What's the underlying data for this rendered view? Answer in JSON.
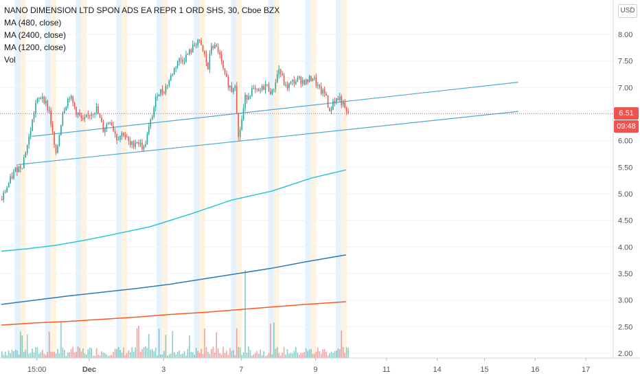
{
  "header": {
    "symbol_title": "NANO DIMENSION LTD SPON ADS EA REPR 1 ORD SHS, 30, Cboe BZX",
    "indicators": [
      "MA (480, close)",
      "MA (2400, close)",
      "MA (1200, close)",
      "Vol"
    ]
  },
  "price_scale": {
    "currency": "USD",
    "last_price": "6.51",
    "countdown": "09:48"
  },
  "colors": {
    "up": "#26a69a",
    "down": "#ef5350",
    "ma480": "#26c6da",
    "ma2400": "#ff5722",
    "ma1200": "#2979b8",
    "trendline": "#4fa8d6",
    "session_blue": "#e3f2fd",
    "session_orange": "#fff3e0",
    "last_price_line": "#ef5350"
  },
  "chart_data": {
    "type": "candlestick",
    "title": "NANO DIMENSION LTD SPON ADS EA REPR 1 ORD SHS, 30, Cboe BZX",
    "interval": "30",
    "y_ticks": [
      2.0,
      2.5,
      3.0,
      3.5,
      4.0,
      4.5,
      5.0,
      5.5,
      6.0,
      6.5,
      7.0,
      7.5,
      8.0
    ],
    "y_tick_labels": [
      "2.00",
      "2.50",
      "3.00",
      "3.50",
      "4.00",
      "4.50",
      "5.00",
      "5.50",
      "6.00",
      "6.50",
      "7.00",
      "7.50",
      "8.00"
    ],
    "ylim": [
      1.95,
      8.4
    ],
    "x_tick_labels": [
      "15:00",
      "Dec",
      "3",
      "7",
      "9",
      "11",
      "14",
      "15",
      "16",
      "17"
    ],
    "x_ticks_slot": [
      10.5,
      26,
      48,
      71,
      93,
      114,
      129,
      143,
      158,
      173
    ],
    "price_slots": 103,
    "close_path": [
      [
        0,
        4.9
      ],
      [
        2,
        5.2
      ],
      [
        4,
        5.45
      ],
      [
        6,
        5.55
      ],
      [
        8,
        6.05
      ],
      [
        10,
        6.7
      ],
      [
        12,
        6.85
      ],
      [
        14,
        6.55
      ],
      [
        16,
        5.7
      ],
      [
        18,
        6.55
      ],
      [
        20,
        6.85
      ],
      [
        22,
        6.55
      ],
      [
        24,
        6.35
      ],
      [
        26,
        6.5
      ],
      [
        28,
        6.6
      ],
      [
        30,
        6.2
      ],
      [
        32,
        6.4
      ],
      [
        34,
        6.05
      ],
      [
        36,
        6.15
      ],
      [
        38,
        5.9
      ],
      [
        40,
        6.0
      ],
      [
        42,
        5.85
      ],
      [
        44,
        6.35
      ],
      [
        46,
        6.9
      ],
      [
        48,
        6.95
      ],
      [
        50,
        7.2
      ],
      [
        52,
        7.5
      ],
      [
        54,
        7.55
      ],
      [
        56,
        7.7
      ],
      [
        58,
        7.9
      ],
      [
        60,
        7.6
      ],
      [
        61,
        7.35
      ],
      [
        62,
        7.8
      ],
      [
        64,
        7.7
      ],
      [
        66,
        7.2
      ],
      [
        68,
        6.95
      ],
      [
        69,
        7.1
      ],
      [
        70,
        6.05
      ],
      [
        71,
        6.4
      ],
      [
        72,
        6.8
      ],
      [
        74,
        6.95
      ],
      [
        76,
        6.9
      ],
      [
        78,
        7.05
      ],
      [
        80,
        6.9
      ],
      [
        82,
        7.35
      ],
      [
        84,
        7.0
      ],
      [
        86,
        7.1
      ],
      [
        88,
        7.15
      ],
      [
        90,
        7.1
      ],
      [
        92,
        7.2
      ],
      [
        94,
        6.95
      ],
      [
        96,
        6.85
      ],
      [
        97,
        6.5
      ],
      [
        98,
        6.75
      ],
      [
        100,
        6.8
      ],
      [
        102,
        6.51
      ]
    ],
    "moving_averages": [
      {
        "name": "MA (480, close)",
        "points": [
          [
            0,
            3.92
          ],
          [
            8,
            3.97
          ],
          [
            16,
            4.03
          ],
          [
            24,
            4.12
          ],
          [
            32,
            4.22
          ],
          [
            44,
            4.38
          ],
          [
            56,
            4.62
          ],
          [
            68,
            4.88
          ],
          [
            80,
            5.05
          ],
          [
            92,
            5.3
          ],
          [
            102,
            5.45
          ]
        ]
      },
      {
        "name": "MA (1200, close)",
        "points": [
          [
            0,
            2.92
          ],
          [
            10,
            3.0
          ],
          [
            20,
            3.08
          ],
          [
            30,
            3.15
          ],
          [
            40,
            3.22
          ],
          [
            50,
            3.3
          ],
          [
            60,
            3.4
          ],
          [
            70,
            3.5
          ],
          [
            80,
            3.6
          ],
          [
            90,
            3.72
          ],
          [
            102,
            3.85
          ]
        ]
      },
      {
        "name": "MA (2400, close)",
        "points": [
          [
            0,
            2.53
          ],
          [
            10,
            2.57
          ],
          [
            20,
            2.6
          ],
          [
            30,
            2.64
          ],
          [
            40,
            2.68
          ],
          [
            50,
            2.73
          ],
          [
            60,
            2.77
          ],
          [
            70,
            2.82
          ],
          [
            80,
            2.87
          ],
          [
            90,
            2.92
          ],
          [
            102,
            2.97
          ]
        ]
      }
    ],
    "trend_lines": [
      {
        "from": [
          9,
          6.08
        ],
        "to": [
          153,
          7.1
        ]
      },
      {
        "from": [
          5,
          5.55
        ],
        "to": [
          153,
          6.55
        ]
      }
    ],
    "volume_spike_slot": 72,
    "last_price": 6.51
  }
}
